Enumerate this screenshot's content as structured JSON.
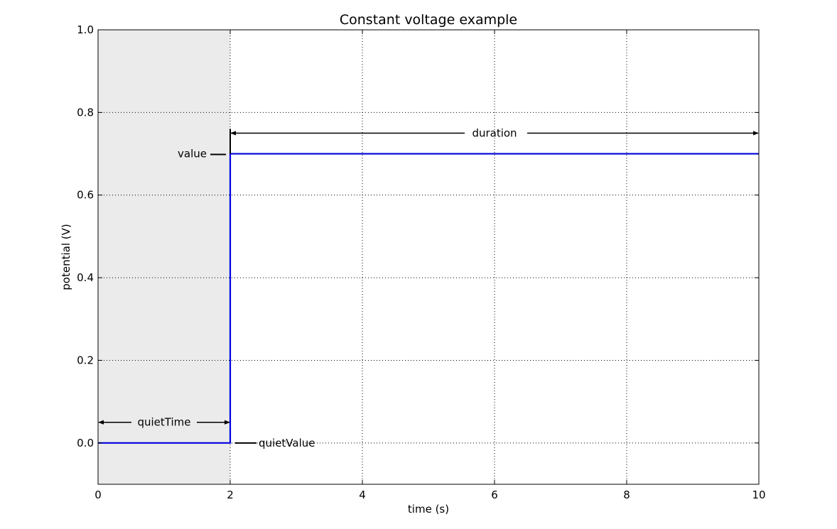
{
  "chart_data": {
    "type": "line",
    "title": "Constant voltage example",
    "xlabel": "time (s)",
    "ylabel": "potential (V)",
    "xlim": [
      0,
      10
    ],
    "ylim": [
      -0.1,
      1.0
    ],
    "xticks": [
      0,
      2,
      4,
      6,
      8,
      10
    ],
    "yticks": [
      0.0,
      0.2,
      0.4,
      0.6,
      0.8,
      1.0
    ],
    "xtick_labels": [
      "0",
      "2",
      "4",
      "6",
      "8",
      "10"
    ],
    "ytick_labels": [
      "0.0",
      "0.2",
      "0.4",
      "0.6",
      "0.8",
      "1.0"
    ],
    "grid": true,
    "shaded_region": {
      "x0": 0,
      "x1": 2,
      "color": "#ebebeb"
    },
    "series": [
      {
        "color": "#0000dd",
        "x": [
          0,
          2,
          2,
          10
        ],
        "y": [
          0.0,
          0.0,
          0.7,
          0.7
        ]
      }
    ],
    "annotations": {
      "quiet_time": {
        "label": "quietTime",
        "x0": 0,
        "x1": 2,
        "y": 0.05
      },
      "duration": {
        "label": "duration",
        "x0": 2,
        "x1": 10,
        "y": 0.75
      },
      "value": {
        "label": "value",
        "y": 0.7
      },
      "quiet_value": {
        "label": "quietValue",
        "y": 0.0
      }
    }
  }
}
